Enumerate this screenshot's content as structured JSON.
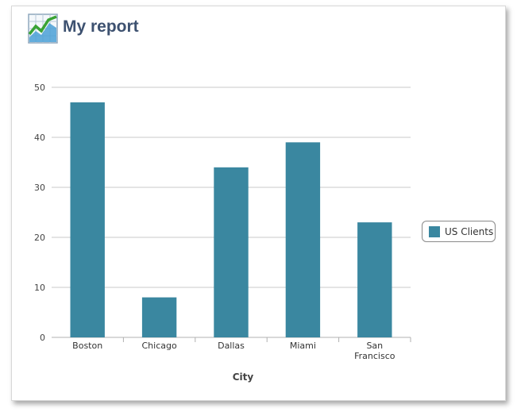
{
  "header": {
    "title": "My report",
    "icon": "chart-report-icon"
  },
  "chart_data": {
    "type": "bar",
    "categories": [
      "Boston",
      "Chicago",
      "Dallas",
      "Miami",
      "San Francisco"
    ],
    "series": [
      {
        "name": "US Clients",
        "values": [
          47,
          8,
          34,
          39,
          23
        ],
        "color": "#3a87a0"
      }
    ],
    "xlabel": "City",
    "ylabel": "",
    "ylim": [
      0,
      50
    ],
    "yticks": [
      0,
      10,
      20,
      30,
      40,
      50
    ],
    "grid": true,
    "legend_position": "right"
  }
}
